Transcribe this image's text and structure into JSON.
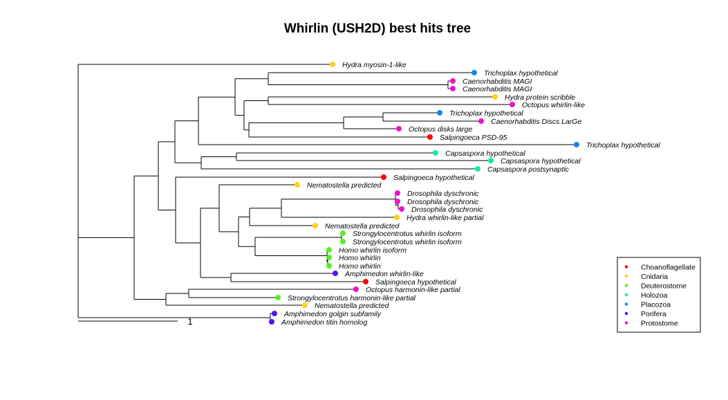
{
  "title": "Whirlin (USH2D) best hits tree",
  "scale_bar": {
    "label": "1"
  },
  "colors": {
    "Choanoflagellate": "#ff0000",
    "Cnidaria": "#ffd11a",
    "Deuterostome": "#55ee22",
    "Holozoa": "#11eea0",
    "Placozoa": "#1188ee",
    "Porifera": "#5511ee",
    "Protostome": "#ee11cc"
  },
  "legend": [
    {
      "label": "Choanoflagellate",
      "group": "Choanoflagellate"
    },
    {
      "label": "Cnidaria",
      "group": "Cnidaria"
    },
    {
      "label": "Deuterostome",
      "group": "Deuterostome"
    },
    {
      "label": "Holozoa",
      "group": "Holozoa"
    },
    {
      "label": "Placozoa",
      "group": "Placozoa"
    },
    {
      "label": "Porifera",
      "group": "Porifera"
    },
    {
      "label": "Protostome",
      "group": "Protostome"
    }
  ],
  "tips": [
    {
      "label": "Hydra myosin-1-like",
      "group": "Cnidaria"
    },
    {
      "label": "Trichoplax hypothetical",
      "group": "Placozoa"
    },
    {
      "label": "Caenorhabditis MAGI",
      "group": "Protostome"
    },
    {
      "label": "Caenorhabditis MAGI",
      "group": "Protostome"
    },
    {
      "label": "Hydra protein scribble",
      "group": "Cnidaria"
    },
    {
      "label": "Octopus whirlin-like",
      "group": "Protostome"
    },
    {
      "label": "Trichoplax hypothetical",
      "group": "Placozoa"
    },
    {
      "label": "Caenorhabditis Discs LarGe",
      "group": "Protostome"
    },
    {
      "label": "Octopus disks large",
      "group": "Protostome"
    },
    {
      "label": "Salpingoeca PSD-95",
      "group": "Choanoflagellate"
    },
    {
      "label": "Trichoplax hypothetical",
      "group": "Placozoa"
    },
    {
      "label": "Capsaspora hypothetical",
      "group": "Holozoa"
    },
    {
      "label": "Capsaspora hypothetical",
      "group": "Holozoa"
    },
    {
      "label": "Capsaspora postsynaptic",
      "group": "Holozoa"
    },
    {
      "label": "Salpingoeca hypothetical",
      "group": "Choanoflagellate"
    },
    {
      "label": "Nematostella predicted",
      "group": "Cnidaria"
    },
    {
      "label": "Drosophila dyschronic",
      "group": "Protostome"
    },
    {
      "label": "Drosophila dyschronic",
      "group": "Protostome"
    },
    {
      "label": "Drosophila dyschronic",
      "group": "Protostome"
    },
    {
      "label": "Hydra whirlin-like partial",
      "group": "Cnidaria"
    },
    {
      "label": "Nematostella predicted",
      "group": "Cnidaria"
    },
    {
      "label": "Strongylocentrotus whirlin isoform",
      "group": "Deuterostome"
    },
    {
      "label": "Strongylocentrotus whirlin isoform",
      "group": "Deuterostome"
    },
    {
      "label": "Homo whirlin isoform",
      "group": "Deuterostome"
    },
    {
      "label": "Homo whirlin",
      "group": "Deuterostome"
    },
    {
      "label": "Homo whirlin",
      "group": "Deuterostome"
    },
    {
      "label": "Amphimedon whirlin-like",
      "group": "Porifera"
    },
    {
      "label": "Salpingoeca hypothetical",
      "group": "Choanoflagellate"
    },
    {
      "label": "Octopus harmonin-like partial",
      "group": "Protostome"
    },
    {
      "label": "Strongylocentrotus harmonin-like partial",
      "group": "Deuterostome"
    },
    {
      "label": "Nematostella predicted",
      "group": "Cnidaria"
    },
    {
      "label": "Amphimedon golgin subfamily",
      "group": "Porifera"
    },
    {
      "label": "Amphimedon titin homolog",
      "group": "Porifera"
    }
  ]
}
